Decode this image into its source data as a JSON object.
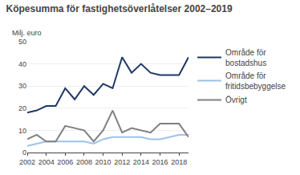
{
  "chart_data": {
    "type": "line",
    "title": "Köpesumma för fastighetsöverlåtelser 2002–2019",
    "ylabel": "Milj. euro",
    "x": [
      2002,
      2003,
      2004,
      2005,
      2006,
      2007,
      2008,
      2009,
      2010,
      2011,
      2012,
      2013,
      2014,
      2015,
      2016,
      2018,
      2019
    ],
    "series": [
      {
        "name": "Område för\nbostadshus",
        "color": "#1f3864",
        "values": [
          18,
          19,
          21,
          21,
          29,
          24,
          30,
          26,
          31,
          29,
          43,
          36,
          40,
          36,
          35,
          35,
          43
        ]
      },
      {
        "name": "Område för\nfritidsbebyggelse",
        "color": "#9dc3e6",
        "values": [
          3,
          4,
          5,
          5,
          5,
          5,
          5,
          4,
          6,
          7,
          7,
          7,
          7,
          6,
          6,
          8,
          8
        ]
      },
      {
        "name": "Övrigt",
        "color": "#808080",
        "values": [
          6,
          8,
          5,
          5,
          12,
          11,
          10,
          5,
          10,
          19,
          9,
          11,
          10,
          9,
          13,
          13,
          7
        ]
      }
    ],
    "xlim": [
      2002,
      2019
    ],
    "xticks": [
      2002,
      2004,
      2006,
      2008,
      2010,
      2012,
      2014,
      2016,
      2018
    ],
    "ylim": [
      0,
      50
    ],
    "yticks": [
      0,
      10,
      20,
      30,
      40,
      50
    ],
    "grid": true,
    "legend": "right"
  }
}
